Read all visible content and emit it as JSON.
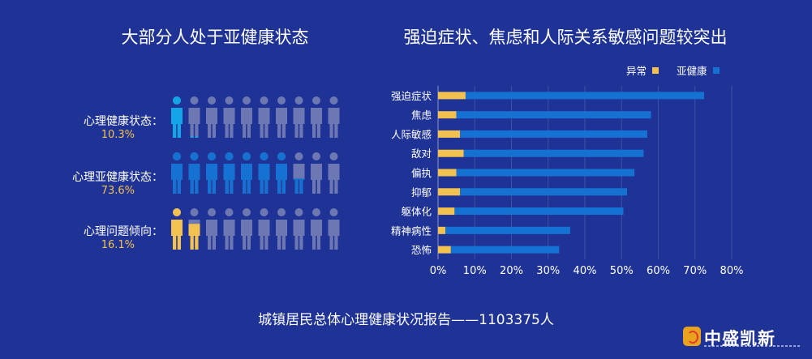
{
  "left_panel": {
    "title": "大部分人处于亚健康状态",
    "rows": [
      {
        "label": "心理健康状态：",
        "percent": "10.3%",
        "share": 0.103,
        "color": "#12a6e8"
      },
      {
        "label": "心理亚健康状态：",
        "percent": "73.6%",
        "share": 0.736,
        "color": "#1572d3"
      },
      {
        "label": "心理问题倾向：",
        "percent": "16.1%",
        "share": 0.161,
        "color": "#f2c14f"
      }
    ],
    "icon_count": 10,
    "inactive_color": "#6d78b3"
  },
  "right_panel": {
    "title": "强迫症状、焦虑和人际关系敏感问题较突出"
  },
  "chart_data": {
    "type": "bar",
    "orientation": "horizontal",
    "stacked": true,
    "categories": [
      "强迫症状",
      "焦虑",
      "人际敏感",
      "敌对",
      "偏执",
      "抑郁",
      "躯体化",
      "精神病性",
      "恐怖"
    ],
    "series": [
      {
        "name": "异常",
        "color": "#f2c14f",
        "values": [
          7.5,
          5.0,
          6.0,
          7.0,
          5.0,
          6.0,
          4.5,
          2.0,
          3.5
        ]
      },
      {
        "name": "亚健康",
        "color": "#1572d3",
        "values": [
          65.0,
          53.0,
          51.0,
          49.0,
          48.5,
          45.5,
          46.0,
          34.0,
          29.5
        ]
      }
    ],
    "xlim": [
      0,
      80
    ],
    "xticks": [
      "0%",
      "10%",
      "20%",
      "30%",
      "40%",
      "50%",
      "60%",
      "70%",
      "80%"
    ],
    "legend_position": "top-right",
    "grid": "vertical"
  },
  "footer": {
    "text": "城镇居民总体心理健康状况报告——1103375人"
  },
  "logo": {
    "text": "中盛凯新"
  }
}
